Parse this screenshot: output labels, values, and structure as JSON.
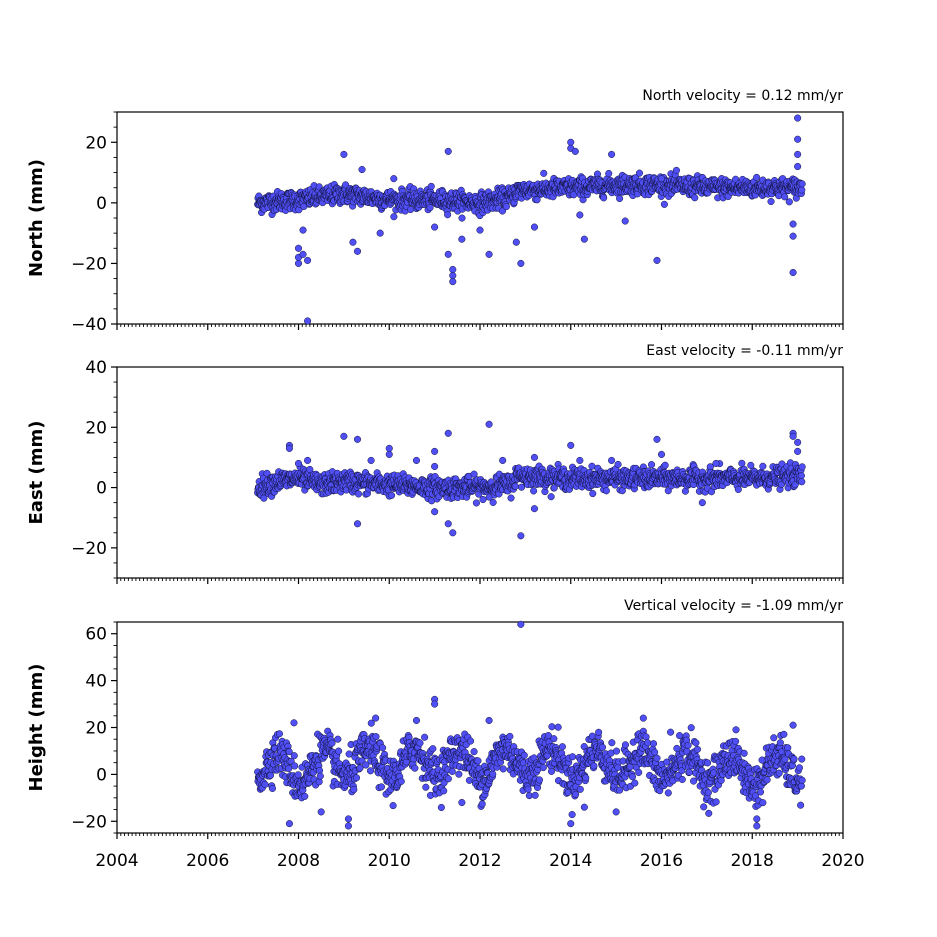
{
  "chart_data": [
    {
      "type": "scatter",
      "ylabel": "North (mm)",
      "annotation": "North velocity = 0.12 mm/yr",
      "xlim": [
        2004,
        2020
      ],
      "ylim": [
        -40,
        30
      ],
      "yticks": [
        -40,
        -20,
        0,
        20
      ],
      "ytick_labels": [
        "−40",
        "−20",
        "0",
        "20"
      ],
      "marker_color": "#4f4ff5",
      "series": [
        {
          "trend": [
            [
              2007.1,
              0
            ],
            [
              2008.0,
              1
            ],
            [
              2009.0,
              3
            ],
            [
              2010.0,
              1
            ],
            [
              2011.0,
              1
            ],
            [
              2012.0,
              0
            ],
            [
              2012.7,
              2
            ],
            [
              2012.8,
              4
            ],
            [
              2014.0,
              5
            ],
            [
              2015.0,
              6
            ],
            [
              2016.0,
              6
            ],
            [
              2017.0,
              5
            ],
            [
              2018.0,
              5
            ],
            [
              2019.1,
              5
            ]
          ],
          "scatter_sd": 1.6,
          "outliers": [
            [
              2008.0,
              -15
            ],
            [
              2008.0,
              -18
            ],
            [
              2008.0,
              -20
            ],
            [
              2008.1,
              -17
            ],
            [
              2008.2,
              -19
            ],
            [
              2008.1,
              -9
            ],
            [
              2008.2,
              -39
            ],
            [
              2009.0,
              16
            ],
            [
              2009.2,
              -13
            ],
            [
              2009.3,
              -16
            ],
            [
              2009.4,
              11
            ],
            [
              2009.8,
              -10
            ],
            [
              2010.1,
              8
            ],
            [
              2011.0,
              -8
            ],
            [
              2011.3,
              -17
            ],
            [
              2011.4,
              -22
            ],
            [
              2011.4,
              -24
            ],
            [
              2011.4,
              -26
            ],
            [
              2011.3,
              17
            ],
            [
              2011.6,
              -12
            ],
            [
              2012.0,
              -9
            ],
            [
              2012.2,
              -17
            ],
            [
              2012.8,
              -13
            ],
            [
              2012.9,
              -20
            ],
            [
              2013.2,
              -8
            ],
            [
              2014.0,
              20
            ],
            [
              2014.0,
              18
            ],
            [
              2014.1,
              17
            ],
            [
              2014.3,
              -12
            ],
            [
              2014.2,
              -4
            ],
            [
              2014.9,
              16
            ],
            [
              2015.2,
              -6
            ],
            [
              2015.9,
              -19
            ],
            [
              2016.0,
              8
            ],
            [
              2018.9,
              -23
            ],
            [
              2018.9,
              -11
            ],
            [
              2018.9,
              -7
            ],
            [
              2019.0,
              28
            ],
            [
              2019.0,
              21
            ],
            [
              2019.0,
              16
            ],
            [
              2019.0,
              12
            ]
          ]
        }
      ]
    },
    {
      "type": "scatter",
      "ylabel": "East (mm)",
      "annotation": "East velocity = -0.11 mm/yr",
      "xlim": [
        2004,
        2020
      ],
      "ylim": [
        -30,
        40
      ],
      "yticks": [
        -20,
        0,
        20,
        40
      ],
      "ytick_labels": [
        "−20",
        "0",
        "20",
        "40"
      ],
      "marker_color": "#4f4ff5",
      "series": [
        {
          "trend": [
            [
              2007.1,
              0
            ],
            [
              2007.5,
              2
            ],
            [
              2008.0,
              3
            ],
            [
              2008.5,
              1
            ],
            [
              2009.0,
              2
            ],
            [
              2010.0,
              1
            ],
            [
              2011.0,
              0
            ],
            [
              2012.0,
              0
            ],
            [
              2012.7,
              1
            ],
            [
              2012.8,
              4
            ],
            [
              2014.0,
              3
            ],
            [
              2015.0,
              3
            ],
            [
              2016.0,
              3
            ],
            [
              2017.0,
              3
            ],
            [
              2018.0,
              3
            ],
            [
              2019.1,
              4
            ]
          ],
          "scatter_sd": 1.7,
          "outliers": [
            [
              2007.8,
              14
            ],
            [
              2007.8,
              13
            ],
            [
              2008.0,
              8
            ],
            [
              2008.2,
              9
            ],
            [
              2009.0,
              17
            ],
            [
              2009.3,
              16
            ],
            [
              2009.3,
              -12
            ],
            [
              2009.6,
              9
            ],
            [
              2010.0,
              13
            ],
            [
              2010.0,
              11
            ],
            [
              2010.6,
              9
            ],
            [
              2011.0,
              12
            ],
            [
              2011.0,
              7
            ],
            [
              2011.3,
              18
            ],
            [
              2011.3,
              -12
            ],
            [
              2011.4,
              -15
            ],
            [
              2011.0,
              -8
            ],
            [
              2012.2,
              21
            ],
            [
              2012.5,
              9
            ],
            [
              2012.9,
              -16
            ],
            [
              2013.2,
              -7
            ],
            [
              2013.2,
              10
            ],
            [
              2014.0,
              14
            ],
            [
              2014.2,
              9
            ],
            [
              2014.9,
              9
            ],
            [
              2015.9,
              16
            ],
            [
              2016.0,
              11
            ],
            [
              2016.9,
              -5
            ],
            [
              2017.2,
              8
            ],
            [
              2018.9,
              18
            ],
            [
              2018.9,
              17
            ],
            [
              2019.0,
              15
            ],
            [
              2019.0,
              12
            ]
          ]
        }
      ]
    },
    {
      "type": "scatter",
      "ylabel": "Height (mm)",
      "annotation": "Vertical velocity = -1.09 mm/yr",
      "xlim": [
        2004,
        2020
      ],
      "ylim": [
        -25,
        65
      ],
      "yticks": [
        -20,
        0,
        20,
        40,
        60
      ],
      "ytick_labels": [
        "−20",
        "0",
        "20",
        "40",
        "60"
      ],
      "marker_color": "#4f4ff5",
      "series": [
        {
          "trend": [
            [
              2007.1,
              4
            ],
            [
              2008.0,
              2
            ],
            [
              2009.0,
              5
            ],
            [
              2010.0,
              4
            ],
            [
              2011.0,
              6
            ],
            [
              2012.0,
              4
            ],
            [
              2013.0,
              6
            ],
            [
              2014.0,
              4
            ],
            [
              2015.0,
              5
            ],
            [
              2016.0,
              4
            ],
            [
              2017.0,
              3
            ],
            [
              2018.0,
              1
            ],
            [
              2019.1,
              3
            ]
          ],
          "seasonal_amplitude": 6,
          "scatter_sd": 4.5,
          "outliers": [
            [
              2007.8,
              -21
            ],
            [
              2007.9,
              22
            ],
            [
              2008.5,
              -16
            ],
            [
              2009.1,
              -19
            ],
            [
              2009.1,
              -22
            ],
            [
              2009.7,
              24
            ],
            [
              2010.6,
              23
            ],
            [
              2011.0,
              32
            ],
            [
              2011.0,
              30
            ],
            [
              2011.6,
              -12
            ],
            [
              2012.2,
              23
            ],
            [
              2012.9,
              64
            ],
            [
              2014.0,
              -21
            ],
            [
              2014.3,
              -14
            ],
            [
              2015.0,
              -16
            ],
            [
              2015.6,
              24
            ],
            [
              2016.2,
              18
            ],
            [
              2018.1,
              -19
            ],
            [
              2018.1,
              -22
            ],
            [
              2018.9,
              21
            ]
          ]
        }
      ]
    }
  ],
  "xaxis": {
    "ticks": [
      2004,
      2006,
      2008,
      2010,
      2012,
      2014,
      2016,
      2018,
      2020
    ],
    "tick_labels": [
      "2004",
      "2006",
      "2008",
      "2010",
      "2012",
      "2014",
      "2016",
      "2018",
      "2020"
    ]
  }
}
